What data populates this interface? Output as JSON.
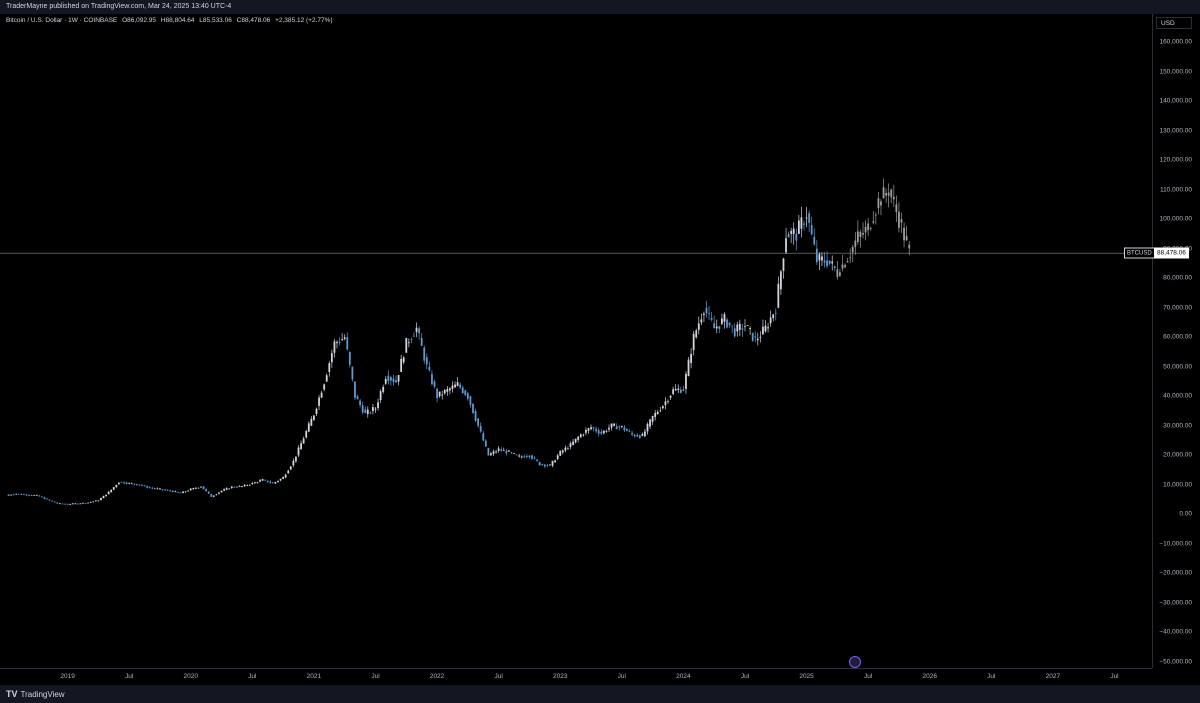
{
  "header": {
    "published": "TraderMayne published on TradingView.com, Mar 24, 2025 13:40 UTC-4"
  },
  "symbol": {
    "title": "Bitcoin / U.S. Dollar · 1W · COINBASE",
    "open": "O86,092.95",
    "high": "H88,804.64",
    "low": "L85,533.06",
    "close": "C88,478.06",
    "change": "+2,385.12 (+2.77%)"
  },
  "currency": "USD",
  "last_price": {
    "symbol": "BTCUSD",
    "value": "88,478.06"
  },
  "footer": {
    "brand": "TradingView"
  },
  "colors": {
    "up": "#d1d4dc",
    "down": "#5b9bd5",
    "projection": "#9e9e9e",
    "background": "#000000"
  },
  "chart_data": {
    "type": "candlestick",
    "title": "Bitcoin / U.S. Dollar · 1W · COINBASE",
    "ylim": [
      -50000,
      160000
    ],
    "y_ticks": [
      "160,000.00",
      "150,000.00",
      "140,000.00",
      "130,000.00",
      "120,000.00",
      "110,000.00",
      "100,000.00",
      "90,000.00",
      "80,000.00",
      "70,000.00",
      "60,000.00",
      "50,000.00",
      "40,000.00",
      "30,000.00",
      "20,000.00",
      "10,000.00",
      "0.00",
      "−10,000.00",
      "−20,000.00",
      "−30,000.00",
      "−40,000.00",
      "−50,000.00"
    ],
    "y_tick_values": [
      160000,
      150000,
      140000,
      130000,
      120000,
      110000,
      100000,
      90000,
      80000,
      70000,
      60000,
      50000,
      40000,
      30000,
      20000,
      10000,
      0,
      -10000,
      -20000,
      -30000,
      -40000,
      -50000
    ],
    "x_range": [
      "2018-07",
      "2027-09"
    ],
    "x_ticks": [
      {
        "label": "2019",
        "date": "2019-01"
      },
      {
        "label": "Jul",
        "date": "2019-07"
      },
      {
        "label": "2020",
        "date": "2020-01"
      },
      {
        "label": "Jul",
        "date": "2020-07"
      },
      {
        "label": "2021",
        "date": "2021-01"
      },
      {
        "label": "Jul",
        "date": "2021-07"
      },
      {
        "label": "2022",
        "date": "2022-01"
      },
      {
        "label": "Jul",
        "date": "2022-07"
      },
      {
        "label": "2023",
        "date": "2023-01"
      },
      {
        "label": "Jul",
        "date": "2023-07"
      },
      {
        "label": "2024",
        "date": "2024-01"
      },
      {
        "label": "Jul",
        "date": "2024-07"
      },
      {
        "label": "2025",
        "date": "2025-01"
      },
      {
        "label": "Jul",
        "date": "2025-07"
      },
      {
        "label": "2026",
        "date": "2026-01"
      },
      {
        "label": "Jul",
        "date": "2026-07"
      },
      {
        "label": "2027",
        "date": "2027-01"
      },
      {
        "label": "Jul",
        "date": "2027-07"
      }
    ],
    "last_price": 88478.06,
    "series": [
      {
        "values": [
          [
            "2018-07",
            6500
          ],
          [
            "2018-08",
            7000
          ],
          [
            "2018-09",
            6600
          ],
          [
            "2018-10",
            6400
          ],
          [
            "2018-11",
            5000
          ],
          [
            "2018-12",
            3700
          ],
          [
            "2019-01",
            3500
          ],
          [
            "2019-02",
            3700
          ],
          [
            "2019-03",
            4000
          ],
          [
            "2019-04",
            4800
          ],
          [
            "2019-05",
            7500
          ],
          [
            "2019-06",
            11000
          ],
          [
            "2019-07",
            10500
          ],
          [
            "2019-08",
            10000
          ],
          [
            "2019-09",
            9000
          ],
          [
            "2019-10",
            8500
          ],
          [
            "2019-11",
            8000
          ],
          [
            "2019-12",
            7200
          ],
          [
            "2020-01",
            8500
          ],
          [
            "2020-02",
            9500
          ],
          [
            "2020-03",
            6000
          ],
          [
            "2020-04",
            8000
          ],
          [
            "2020-05",
            9300
          ],
          [
            "2020-06",
            9500
          ],
          [
            "2020-07",
            10500
          ],
          [
            "2020-08",
            11700
          ],
          [
            "2020-09",
            10500
          ],
          [
            "2020-10",
            12500
          ],
          [
            "2020-11",
            18000
          ],
          [
            "2020-12",
            26000
          ],
          [
            "2021-01",
            34000
          ],
          [
            "2021-02",
            45000
          ],
          [
            "2021-03",
            58000
          ],
          [
            "2021-04",
            60000
          ],
          [
            "2021-05",
            40000
          ],
          [
            "2021-06",
            34000
          ],
          [
            "2021-07",
            36000
          ],
          [
            "2021-08",
            47000
          ],
          [
            "2021-09",
            45000
          ],
          [
            "2021-10",
            58000
          ],
          [
            "2021-11",
            63000
          ],
          [
            "2021-12",
            50000
          ],
          [
            "2022-01",
            40000
          ],
          [
            "2022-02",
            42000
          ],
          [
            "2022-03",
            44000
          ],
          [
            "2022-04",
            40000
          ],
          [
            "2022-05",
            30000
          ],
          [
            "2022-06",
            20000
          ],
          [
            "2022-07",
            22000
          ],
          [
            "2022-08",
            21000
          ],
          [
            "2022-09",
            19500
          ],
          [
            "2022-10",
            20000
          ],
          [
            "2022-11",
            17000
          ],
          [
            "2022-12",
            16500
          ],
          [
            "2023-01",
            21000
          ],
          [
            "2023-02",
            23500
          ],
          [
            "2023-03",
            27000
          ],
          [
            "2023-04",
            29500
          ],
          [
            "2023-05",
            27500
          ],
          [
            "2023-06",
            30000
          ],
          [
            "2023-07",
            29500
          ],
          [
            "2023-08",
            27000
          ],
          [
            "2023-09",
            26500
          ],
          [
            "2023-10",
            33000
          ],
          [
            "2023-11",
            37000
          ],
          [
            "2023-12",
            42000
          ],
          [
            "2024-01",
            42500
          ],
          [
            "2024-02",
            60000
          ],
          [
            "2024-03",
            70000
          ],
          [
            "2024-04",
            63000
          ],
          [
            "2024-05",
            66000
          ],
          [
            "2024-06",
            62000
          ],
          [
            "2024-07",
            64000
          ],
          [
            "2024-08",
            59000
          ],
          [
            "2024-09",
            63000
          ],
          [
            "2024-10",
            70000
          ],
          [
            "2024-11",
            95000
          ],
          [
            "2024-12",
            95000
          ],
          [
            "2025-01",
            102000
          ],
          [
            "2025-02",
            86000
          ],
          [
            "2025-03",
            86000
          ],
          [
            "2025-04",
            82000
          ],
          [
            "2025-05",
            87000
          ],
          [
            "2025-06",
            94000
          ],
          [
            "2025-07",
            97000
          ],
          [
            "2025-08",
            106000
          ],
          [
            "2025-09",
            110000
          ],
          [
            "2025-10",
            100000
          ],
          [
            "2025-11",
            88478
          ]
        ]
      }
    ]
  }
}
